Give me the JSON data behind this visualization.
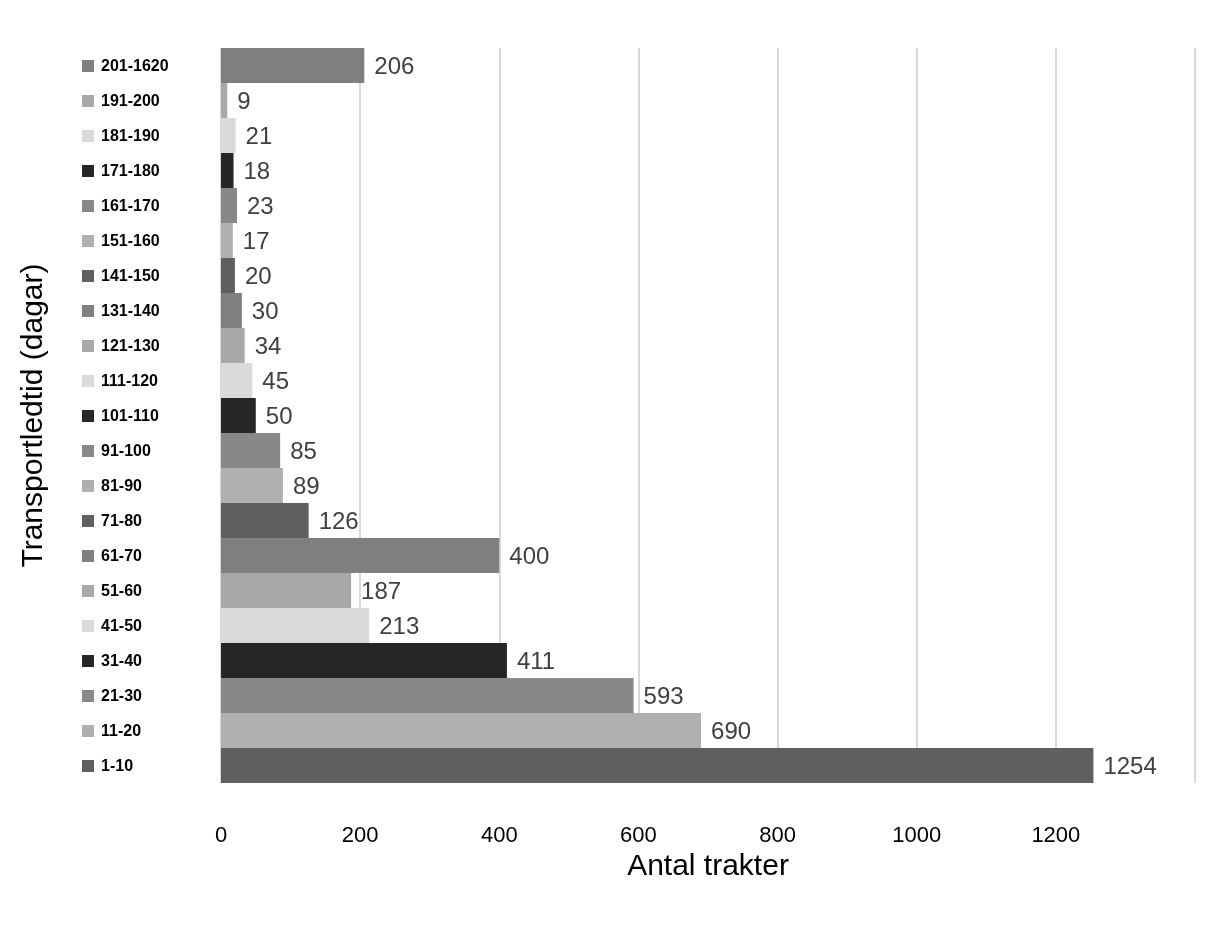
{
  "chart_data": {
    "type": "bar",
    "orientation": "horizontal",
    "xlabel": "Antal trakter",
    "ylabel": "Transportledtid (dagar)",
    "categories": [
      "201-1620",
      "191-200",
      "181-190",
      "171-180",
      "161-170",
      "151-160",
      "141-150",
      "131-140",
      "121-130",
      "111-120",
      "101-110",
      "91-100",
      "81-90",
      "71-80",
      "61-70",
      "51-60",
      "41-50",
      "31-40",
      "21-30",
      "11-20",
      "1-10"
    ],
    "values": [
      206,
      9,
      21,
      18,
      23,
      17,
      20,
      30,
      34,
      45,
      50,
      85,
      89,
      126,
      400,
      187,
      213,
      411,
      593,
      690,
      1254
    ],
    "colors": [
      "#7f7f7f",
      "#a8a8a8",
      "#dadada",
      "#262626",
      "#888888",
      "#b0b0b0",
      "#5f5f5f",
      "#7f7f7f",
      "#a8a8a8",
      "#dadada",
      "#262626",
      "#888888",
      "#b0b0b0",
      "#5f5f5f",
      "#7f7f7f",
      "#a8a8a8",
      "#dadada",
      "#262626",
      "#888888",
      "#b0b0b0",
      "#5f5f5f"
    ],
    "xlim": [
      0,
      1400
    ],
    "xticks": [
      0,
      200,
      400,
      600,
      800,
      1000,
      1200,
      {
        "value": 1400,
        "label": null
      }
    ],
    "grid": "x",
    "data_labels": true
  }
}
